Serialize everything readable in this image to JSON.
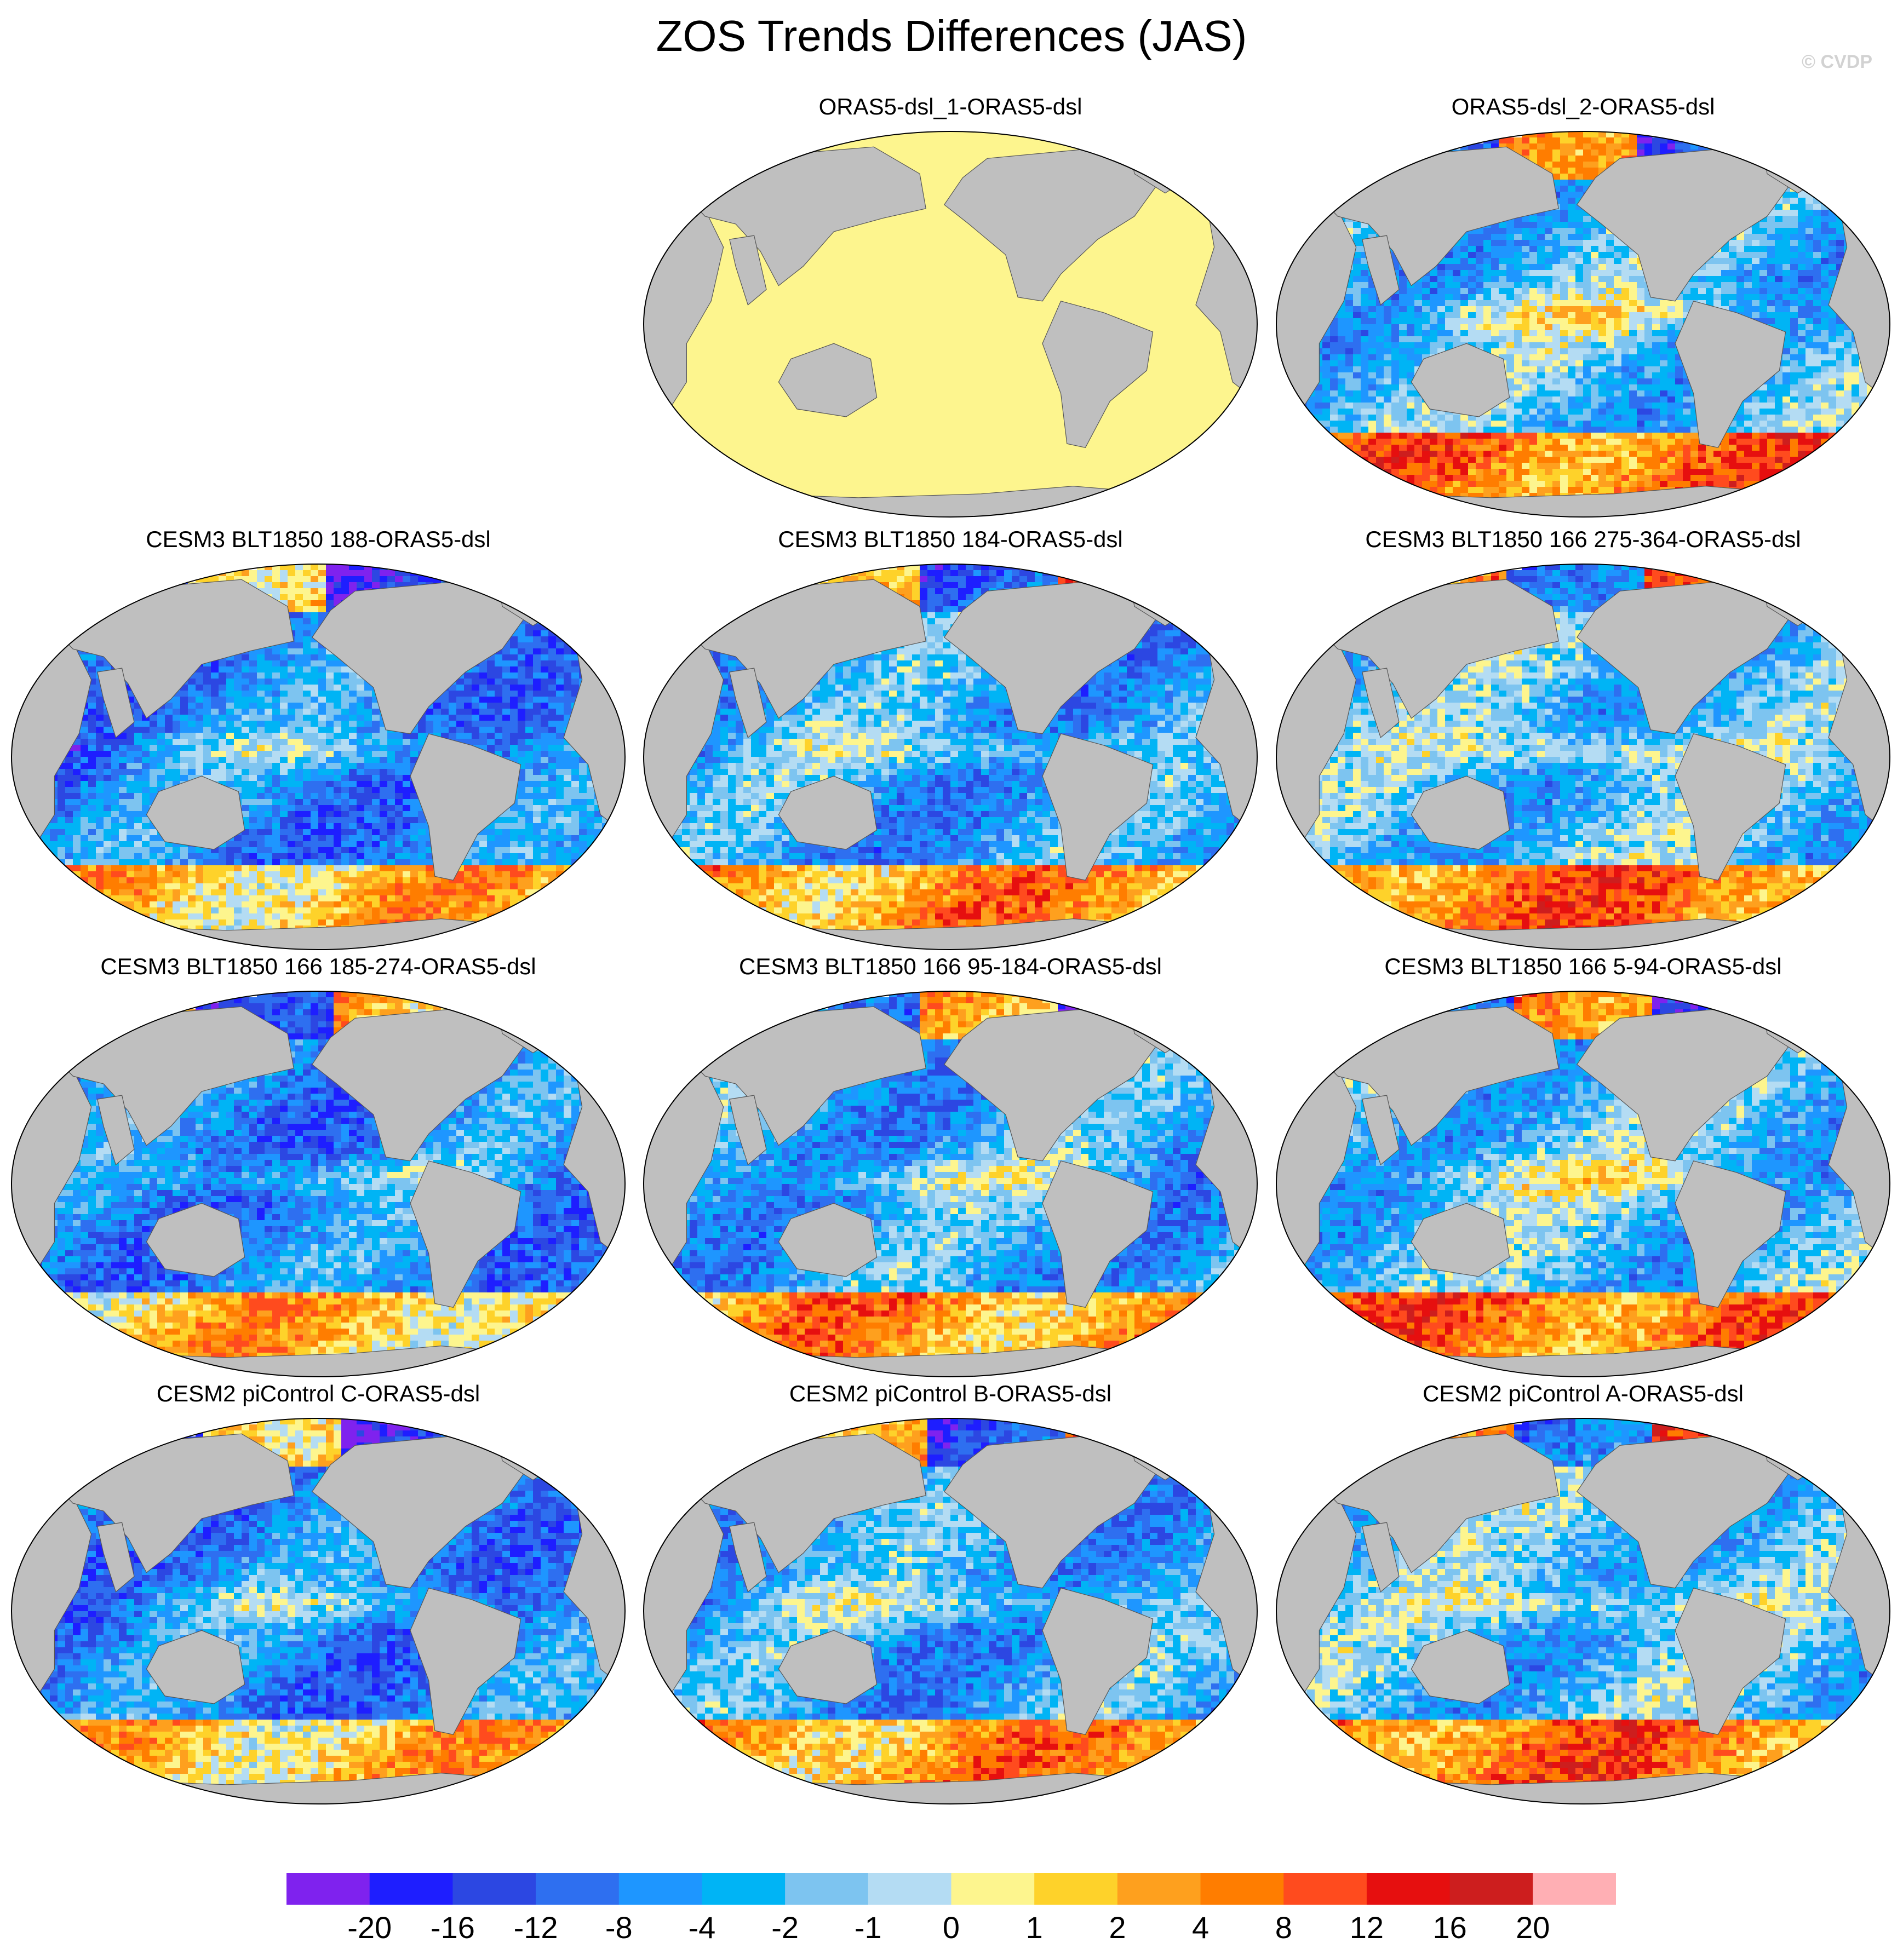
{
  "figure": {
    "title": "ZOS Trends Differences (JAS)",
    "credit": "© CVDP"
  },
  "chart_data": {
    "type": "heatmap",
    "title": "ZOS Trends Differences (JAS)",
    "projection": "Robinson (Pacific-centered)",
    "land_color": "#bfbfbf",
    "panels": [
      {
        "id": "p1",
        "title": "",
        "empty": true,
        "row": 0,
        "col": 0
      },
      {
        "id": "p2",
        "title": "ORAS5-dsl_1-ORAS5-dsl",
        "row": 0,
        "col": 1,
        "uniform_color": "#fdf58e"
      },
      {
        "id": "p3",
        "title": "ORAS5-dsl_2-ORAS5-dsl",
        "row": 0,
        "col": 2
      },
      {
        "id": "p4",
        "title": "CESM3 BLT1850 188-ORAS5-dsl",
        "row": 1,
        "col": 0
      },
      {
        "id": "p5",
        "title": "CESM3 BLT1850 184-ORAS5-dsl",
        "row": 1,
        "col": 1
      },
      {
        "id": "p6",
        "title": "CESM3 BLT1850 166 275-364-ORAS5-dsl",
        "row": 1,
        "col": 2
      },
      {
        "id": "p7",
        "title": "CESM3 BLT1850 166 185-274-ORAS5-dsl",
        "row": 2,
        "col": 0
      },
      {
        "id": "p8",
        "title": "CESM3 BLT1850 166 95-184-ORAS5-dsl",
        "row": 2,
        "col": 1
      },
      {
        "id": "p9",
        "title": "CESM3 BLT1850 166 5-94-ORAS5-dsl",
        "row": 2,
        "col": 2
      },
      {
        "id": "p10",
        "title": "CESM2 piControl C-ORAS5-dsl",
        "row": 3,
        "col": 0
      },
      {
        "id": "p11",
        "title": "CESM2 piControl B-ORAS5-dsl",
        "row": 3,
        "col": 1
      },
      {
        "id": "p12",
        "title": "CESM2 piControl A-ORAS5-dsl",
        "row": 3,
        "col": 2
      }
    ],
    "colorbar": {
      "orientation": "horizontal",
      "placement": "bottom",
      "levels": [
        "-20",
        "-16",
        "-12",
        "-8",
        "-4",
        "-2",
        "-1",
        "0",
        "1",
        "2",
        "4",
        "8",
        "12",
        "16",
        "20"
      ],
      "colors": [
        "#7f22ee",
        "#1e1eff",
        "#2c47e2",
        "#2e6ff0",
        "#1e96ff",
        "#00b4f5",
        "#7dc4f0",
        "#b4dcf3",
        "#fdf58e",
        "#fed22a",
        "#fea01e",
        "#ff7d00",
        "#ff4b1e",
        "#e60f0f",
        "#cd1e1e",
        "#ffafb4"
      ]
    }
  }
}
